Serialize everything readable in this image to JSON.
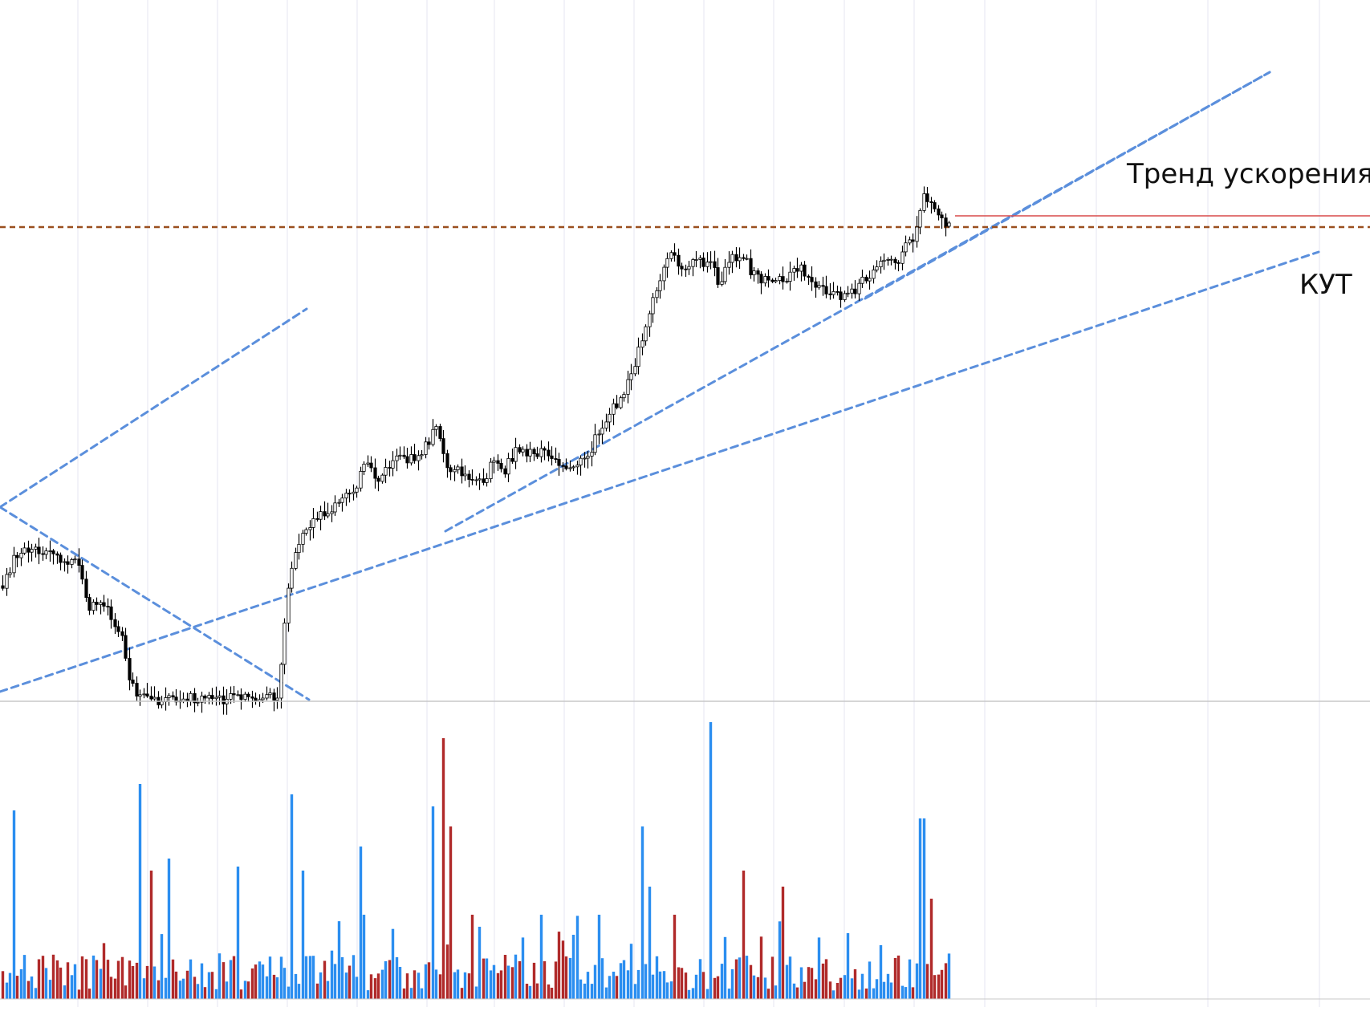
{
  "chart_data": {
    "type": "candlestick",
    "price_panel": {
      "y_axis": "not shown",
      "grid": "vertical only",
      "horizontal_levels": [
        {
          "style": "dashed",
          "color": "#9a4f1e"
        },
        {
          "style": "solid",
          "color": "#d94a4a"
        }
      ],
      "trendlines_color": "#5b8fdc",
      "annotations": [
        {
          "text": "Тренд ускорения"
        },
        {
          "text": "КУТ"
        }
      ]
    },
    "volume_panel": {
      "up_color": "#2b8ef0",
      "down_color": "#b02a2a"
    },
    "colors": {
      "candle": "#000000",
      "grid": "#e4e4f2",
      "panel_divider": "#c8c8c8"
    }
  }
}
